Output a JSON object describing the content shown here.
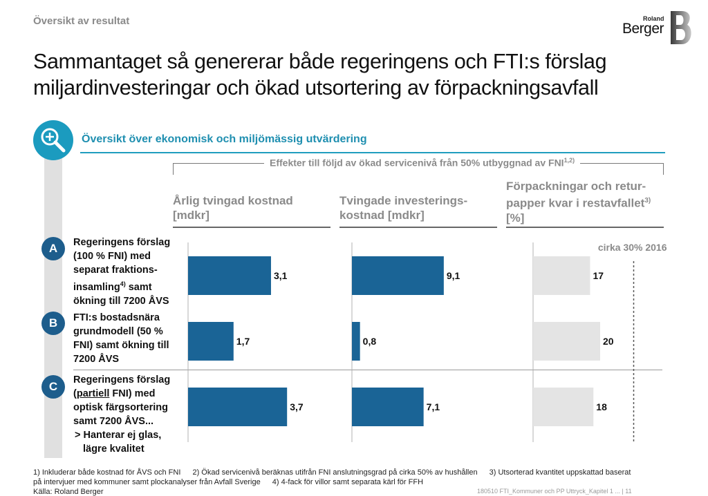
{
  "header": {
    "section_label": "Översikt av resultat",
    "logo_small": "Roland",
    "logo_big": "Berger",
    "title_line1": "Sammantaget så genererar både regeringens och FTI:s förslag",
    "title_line2": "miljardinvesteringar och ökad utsortering av förpackningsavfall"
  },
  "subtitle": "Översikt över ekonomisk och miljömässig utvärdering",
  "bracket_label": "Effekter till följd av ökad servicenivå från 50% utbyggnad av FNI",
  "bracket_sup": "1,2)",
  "columns": [
    {
      "line1": "Årlig tvingad kostnad",
      "line2": "[mdkr]",
      "line3": ""
    },
    {
      "line1": "Tvingade investerings-",
      "line2": "kostnad [mdkr]",
      "line3": ""
    },
    {
      "line1": "Förpackningar och retur-",
      "line2": "papper kvar i restavfallet",
      "line2_sup": "3)",
      "line3": "[%]"
    }
  ],
  "rows": [
    {
      "letter": "A",
      "lines": [
        "Regeringens förslag",
        "(100 % FNI) med",
        "separat fraktions-",
        "insamling",
        "ökning till 7200 ÅVS"
      ],
      "sup": "4)",
      "tail": " samt"
    },
    {
      "letter": "B",
      "lines": [
        "FTI:s bostadsnära",
        "grundmodell (50 %",
        "FNI) samt ökning till",
        "7200 ÅVS"
      ]
    },
    {
      "letter": "C",
      "lines": [
        "Regeringens förslag",
        "(",
        "partiell",
        " FNI) med",
        "optisk färgsortering",
        "samt 7200 ÅVS...",
        "> Hanterar ej glas,",
        "lägre kvalitet"
      ]
    }
  ],
  "reference_label": "cirka 30% 2016",
  "chart_data": [
    {
      "type": "bar",
      "orientation": "horizontal",
      "title": "Årlig tvingad kostnad [mdkr]",
      "categories": [
        "A",
        "B",
        "C"
      ],
      "values": [
        3.1,
        1.7,
        3.7
      ],
      "labels": [
        "3,1",
        "1,7",
        "3,7"
      ],
      "color": "#1a6496"
    },
    {
      "type": "bar",
      "orientation": "horizontal",
      "title": "Tvingade investeringskostnad [mdkr]",
      "categories": [
        "A",
        "B",
        "C"
      ],
      "values": [
        9.1,
        0.8,
        7.1
      ],
      "labels": [
        "9,1",
        "0,8",
        "7,1"
      ],
      "color": "#1a6496"
    },
    {
      "type": "bar",
      "orientation": "horizontal",
      "title": "Förpackningar och returpapper kvar i restavfallet [%]",
      "categories": [
        "A",
        "B",
        "C"
      ],
      "values": [
        17,
        20,
        18
      ],
      "labels": [
        "17",
        "20",
        "18"
      ],
      "reference_line": 30,
      "reference_label": "cirka 30% 2016",
      "color": "#e4e4e4"
    }
  ],
  "footnotes": {
    "line1_a": "1) Inkluderar både kostnad för ÅVS och FNI",
    "line1_b": "2) Ökad servicenivå beräknas utifrån FNI anslutningsgrad på cirka 50% av hushållen",
    "line1_c": "3) Utsorterad kvantitet uppskattad baserat",
    "line2_a": "på intervjuer med kommuner samt plockanalyser från Avfall Sverige",
    "line2_b": "4) 4-fack för villor samt separata kärl för FFH",
    "line3": "Källa: Roland Berger"
  },
  "footer_right": "180510 FTI_Kommuner och PP Uttryck_Kapitel 1 ... | 11"
}
